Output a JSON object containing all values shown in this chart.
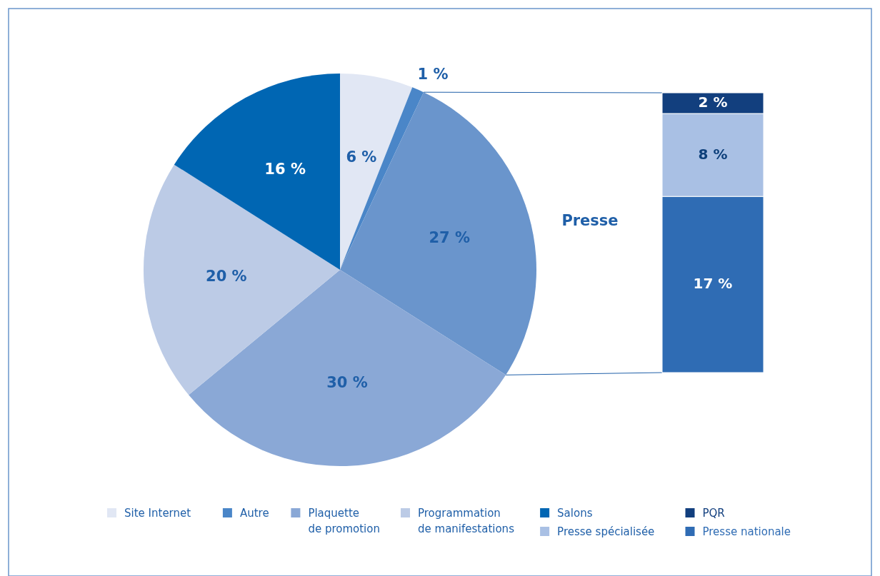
{
  "chart_data": [
    {
      "type": "pie",
      "categories": [
        "Site Internet",
        "Autre",
        "Presse",
        "Plaquette de promotion",
        "Programmation de manifestations",
        "Salons"
      ],
      "values": [
        6,
        1,
        27,
        30,
        20,
        16
      ],
      "colors": [
        "#e1e7f4",
        "#4a86c8",
        "#6a95cc",
        "#8aa8d6",
        "#bccbe6",
        "#0066b3"
      ],
      "value_labels": [
        "6 %",
        "1 %",
        "27 %",
        "30 %",
        "20 %",
        "16 %"
      ],
      "legend": "bottom"
    },
    {
      "type": "bar",
      "stacked": true,
      "categories": [
        null
      ],
      "series": [
        {
          "name": "Presse nationale",
          "color": "#2f6cb4",
          "values": [
            17
          ],
          "value_labels": [
            "17 %"
          ]
        },
        {
          "name": "Presse spécialisée",
          "color": "#a9c0e4",
          "values": [
            8
          ],
          "value_labels": [
            "8 %"
          ]
        },
        {
          "name": "PQR",
          "color": "#123f7e",
          "values": [
            2
          ],
          "value_labels": [
            "2 %"
          ]
        }
      ],
      "legend": "bottom"
    }
  ]
}
